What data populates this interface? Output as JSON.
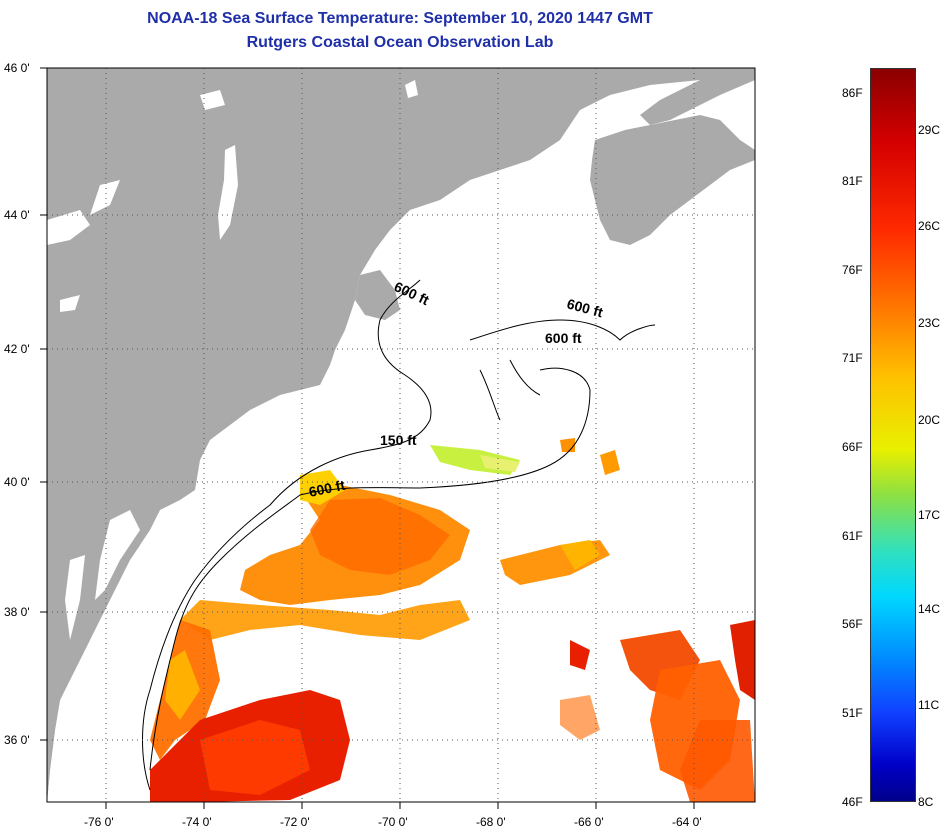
{
  "header": {
    "title_line1": "NOAA-18 Sea Surface Temperature:  September 10, 2020 1447 GMT",
    "title_line2": "Rutgers Coastal Ocean Observation Lab"
  },
  "map": {
    "lat_labels": [
      "46 0'",
      "44 0'",
      "42 0'",
      "40 0'",
      "38 0'",
      "36 0'"
    ],
    "lon_labels": [
      "-76 0'",
      "-74 0'",
      "-72 0'",
      "-70 0'",
      "-68 0'",
      "-66 0'",
      "-64 0'"
    ],
    "depth_labels": [
      "600 ft",
      "600 ft",
      "600 ft",
      "150 ft",
      "600 ft"
    ],
    "colors": {
      "land": "#aaaaaa",
      "ocean": "#ffffff",
      "grid": "#555555"
    }
  },
  "colorbar": {
    "fahrenheit": [
      "86F",
      "81F",
      "76F",
      "71F",
      "66F",
      "61F",
      "56F",
      "51F",
      "46F"
    ],
    "celsius": [
      "29C",
      "26C",
      "23C",
      "20C",
      "17C",
      "14C",
      "11C",
      "8C"
    ]
  }
}
